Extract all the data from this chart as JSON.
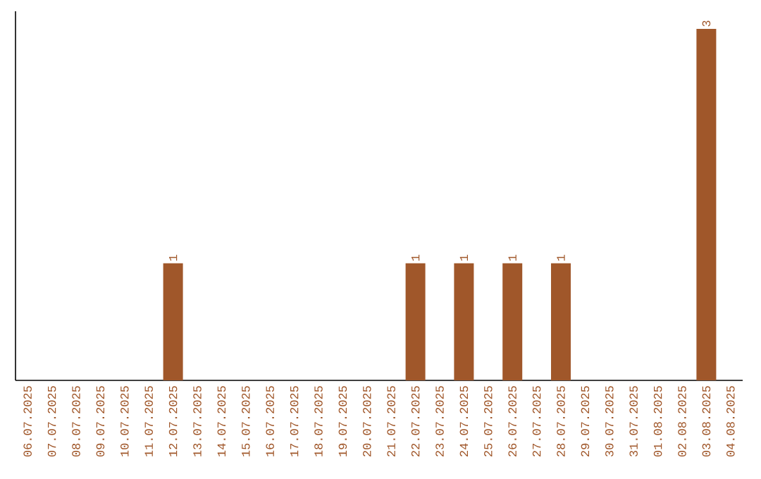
{
  "chart_data": {
    "type": "bar",
    "categories": [
      "06.07.2025",
      "07.07.2025",
      "08.07.2025",
      "09.07.2025",
      "10.07.2025",
      "11.07.2025",
      "12.07.2025",
      "13.07.2025",
      "14.07.2025",
      "15.07.2025",
      "16.07.2025",
      "17.07.2025",
      "18.07.2025",
      "19.07.2025",
      "20.07.2025",
      "21.07.2025",
      "22.07.2025",
      "23.07.2025",
      "24.07.2025",
      "25.07.2025",
      "26.07.2025",
      "27.07.2025",
      "28.07.2025",
      "29.07.2025",
      "30.07.2025",
      "31.07.2025",
      "01.08.2025",
      "02.08.2025",
      "03.08.2025",
      "04.08.2025"
    ],
    "values": [
      0,
      0,
      0,
      0,
      0,
      0,
      1,
      0,
      0,
      0,
      0,
      0,
      0,
      0,
      0,
      0,
      1,
      0,
      1,
      0,
      1,
      0,
      1,
      0,
      0,
      0,
      0,
      0,
      3,
      0
    ],
    "value_labels": [
      null,
      null,
      null,
      null,
      null,
      null,
      "1",
      null,
      null,
      null,
      null,
      null,
      null,
      null,
      null,
      null,
      "1",
      null,
      "1",
      null,
      "1",
      null,
      "1",
      null,
      null,
      null,
      null,
      null,
      "3",
      null
    ],
    "color": "#a0572a",
    "tick_labels": "x"
  }
}
